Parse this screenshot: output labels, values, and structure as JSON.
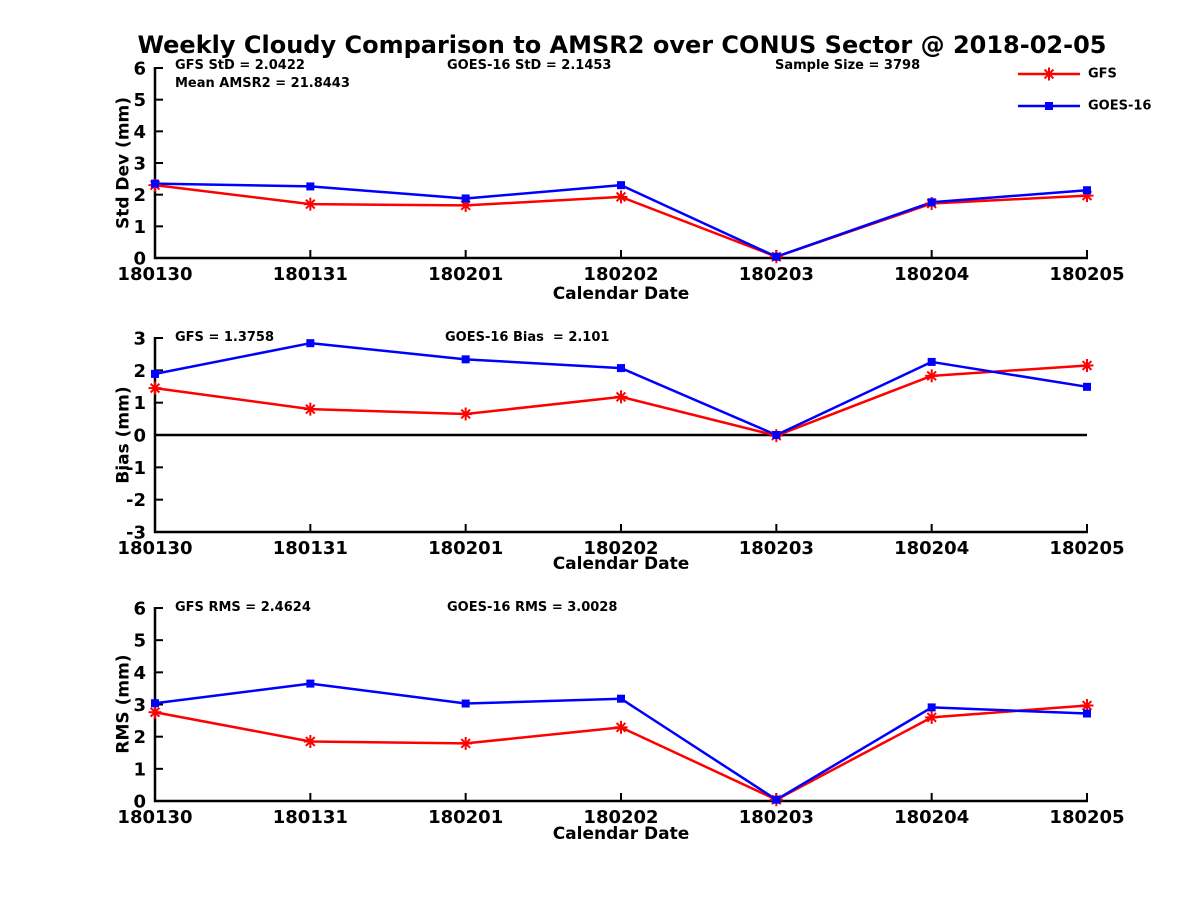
{
  "title": "Weekly Cloudy Comparison to AMSR2 over CONUS Sector @ 2018-02-05",
  "colors": {
    "gfs": "#ff0000",
    "goes16": "#0000ff",
    "axis": "#000000",
    "text": "#000000",
    "zero_line": "#000000",
    "background": "#ffffff"
  },
  "legend": {
    "position": "top-right",
    "entries": [
      {
        "label": "GFS",
        "color": "#ff0000",
        "marker": "asterisk"
      },
      {
        "label": "GOES-16",
        "color": "#0000ff",
        "marker": "square"
      }
    ]
  },
  "chart_data": [
    {
      "type": "line",
      "ylabel": "Std Dev (mm)",
      "xlabel": "Calendar Date",
      "ylim": [
        0,
        6
      ],
      "yticks": [
        0,
        1,
        2,
        3,
        4,
        5,
        6
      ],
      "grid": false,
      "zero_line": false,
      "categories": [
        "180130",
        "180131",
        "180201",
        "180202",
        "180203",
        "180204",
        "180205"
      ],
      "series": [
        {
          "name": "GFS",
          "color": "#ff0000",
          "marker": "asterisk",
          "values": [
            2.3,
            1.7,
            1.66,
            1.93,
            0.04,
            1.72,
            1.97
          ]
        },
        {
          "name": "GOES-16",
          "color": "#0000ff",
          "marker": "square",
          "values": [
            2.35,
            2.26,
            1.88,
            2.3,
            0.04,
            1.76,
            2.14
          ]
        }
      ],
      "annotations": [
        {
          "text": "GFS StD = 2.0422"
        },
        {
          "text": "Mean AMSR2 = 21.8443"
        },
        {
          "text": "GOES-16 StD = 2.1453"
        },
        {
          "text": "Sample Size = 3798"
        }
      ]
    },
    {
      "type": "line",
      "ylabel": "Bias (mm)",
      "xlabel": "Calendar Date",
      "ylim": [
        -3,
        3
      ],
      "yticks": [
        -3,
        -2,
        -1,
        0,
        1,
        2,
        3
      ],
      "grid": false,
      "zero_line": true,
      "categories": [
        "180130",
        "180131",
        "180201",
        "180202",
        "180203",
        "180204",
        "180205"
      ],
      "series": [
        {
          "name": "GFS",
          "color": "#ff0000",
          "marker": "asterisk",
          "values": [
            1.45,
            0.8,
            0.65,
            1.18,
            -0.02,
            1.83,
            2.15
          ]
        },
        {
          "name": "GOES-16",
          "color": "#0000ff",
          "marker": "square",
          "values": [
            1.89,
            2.84,
            2.34,
            2.07,
            0.0,
            2.26,
            1.49
          ]
        }
      ],
      "annotations": [
        {
          "text": "GFS = 1.3758"
        },
        {
          "text": "GOES-16 Bias  = 2.101"
        }
      ]
    },
    {
      "type": "line",
      "ylabel": "RMS (mm)",
      "xlabel": "Calendar Date",
      "ylim": [
        0,
        6
      ],
      "yticks": [
        0,
        1,
        2,
        3,
        4,
        5,
        6
      ],
      "grid": false,
      "zero_line": false,
      "categories": [
        "180130",
        "180131",
        "180201",
        "180202",
        "180203",
        "180204",
        "180205"
      ],
      "series": [
        {
          "name": "GFS",
          "color": "#ff0000",
          "marker": "asterisk",
          "values": [
            2.76,
            1.85,
            1.79,
            2.29,
            0.04,
            2.6,
            2.97
          ]
        },
        {
          "name": "GOES-16",
          "color": "#0000ff",
          "marker": "square",
          "values": [
            3.04,
            3.65,
            3.03,
            3.18,
            0.04,
            2.91,
            2.72
          ]
        }
      ],
      "annotations": [
        {
          "text": "GFS RMS = 2.4624"
        },
        {
          "text": "GOES-16 RMS = 3.0028"
        }
      ]
    }
  ]
}
